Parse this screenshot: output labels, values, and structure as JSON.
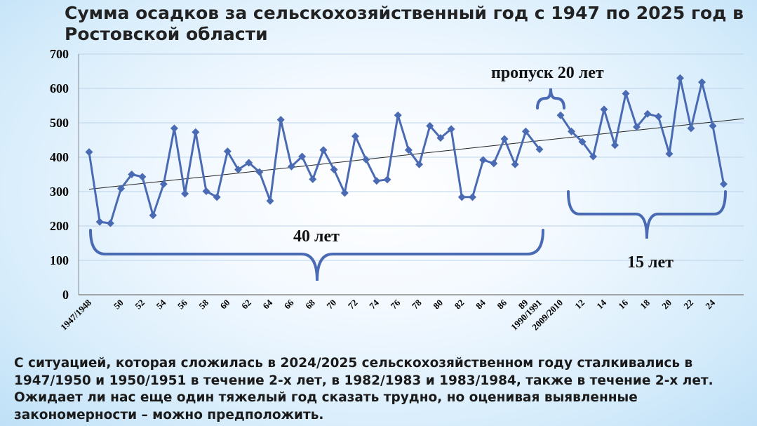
{
  "title": "Сумма осадков за сельскохозяйственный год с 1947 по 2025 год в Ростовской области",
  "footer_text": "С ситуацией, которая сложилась в 2024/2025 сельскохозяйственном году сталкивались в 1947/1950 и 1950/1951 в течение 2-х лет, в 1982/1983 и 1983/1984, также в течение 2-х лет. Ожидает ли нас еще один тяжелый год сказать трудно, но оценивая выявленные закономерности – можно предположить.",
  "chart_data": {
    "type": "line",
    "ylim": [
      0,
      700
    ],
    "yticks": [
      "0",
      "100",
      "200",
      "300",
      "400",
      "500",
      "600",
      "700"
    ],
    "xtick_labels": [
      "1947/1948",
      "50",
      "52",
      "54",
      "56",
      "58",
      "60",
      "62",
      "64",
      "66",
      "68",
      "70",
      "72",
      "74",
      "76",
      "78",
      "80",
      "82",
      "84",
      "86",
      "89",
      "1990/1991",
      "2009/2010",
      "12",
      "14",
      "16",
      "18",
      "20",
      "22",
      "24"
    ],
    "series": [
      {
        "color": "#4a6bb3",
        "marker": "diamond",
        "values": [
          415,
          212,
          208,
          309,
          350,
          343,
          231,
          322,
          484,
          294,
          473,
          301,
          284,
          417,
          364,
          384,
          357,
          273,
          509,
          373,
          402,
          336,
          421,
          364,
          296,
          461,
          393,
          331,
          335,
          522,
          421,
          379,
          491,
          456,
          482,
          284,
          284,
          392,
          382,
          453,
          379,
          475,
          423,
          522,
          475,
          445,
          402,
          539,
          435,
          585,
          488,
          526,
          518,
          410,
          630,
          484,
          618,
          491,
          322
        ]
      }
    ],
    "trendline": {
      "start": 307,
      "end": 512
    },
    "annotations": {
      "bracket_1": "40 лет",
      "gap": "пропуск 20 лет",
      "bracket_2": "15 лет"
    }
  }
}
